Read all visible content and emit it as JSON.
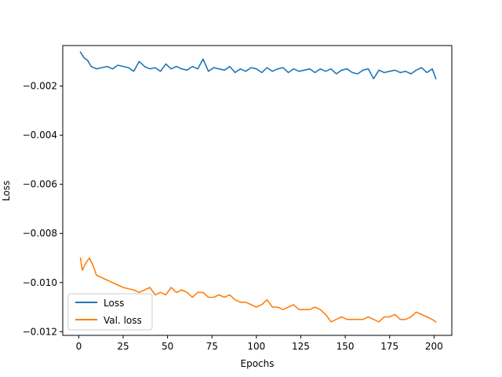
{
  "chart_data": {
    "type": "line",
    "title": "",
    "xlabel": "Epochs",
    "ylabel": "Loss",
    "xlim": [
      -9,
      210
    ],
    "ylim": [
      -0.01215,
      -0.00035
    ],
    "xticks": [
      0,
      25,
      50,
      75,
      100,
      125,
      150,
      175,
      200
    ],
    "xtick_labels": [
      "0",
      "25",
      "50",
      "75",
      "100",
      "125",
      "150",
      "175",
      "200"
    ],
    "yticks": [
      -0.002,
      -0.004,
      -0.006,
      -0.008,
      -0.01,
      -0.012
    ],
    "ytick_labels": [
      "−0.002",
      "−0.004",
      "−0.006",
      "−0.008",
      "−0.010",
      "−0.012"
    ],
    "grid": false,
    "legend_position": "lower-left",
    "series": [
      {
        "name": "Loss",
        "color": "#1f77b4",
        "x": [
          1,
          3,
          5,
          7,
          10,
          13,
          16,
          19,
          22,
          25,
          28,
          31,
          34,
          37,
          40,
          43,
          46,
          49,
          52,
          55,
          58,
          61,
          64,
          67,
          70,
          73,
          76,
          79,
          82,
          85,
          88,
          91,
          94,
          97,
          100,
          103,
          106,
          109,
          112,
          115,
          118,
          121,
          124,
          127,
          130,
          133,
          136,
          139,
          142,
          145,
          148,
          151,
          154,
          157,
          160,
          163,
          166,
          169,
          172,
          175,
          178,
          181,
          184,
          187,
          190,
          193,
          196,
          199,
          201
        ],
        "values": [
          -0.00062,
          -0.00085,
          -0.00095,
          -0.0012,
          -0.0013,
          -0.00125,
          -0.0012,
          -0.0013,
          -0.00115,
          -0.0012,
          -0.00125,
          -0.0014,
          -0.001,
          -0.0012,
          -0.0013,
          -0.00125,
          -0.0014,
          -0.0011,
          -0.0013,
          -0.0012,
          -0.0013,
          -0.00135,
          -0.0012,
          -0.0013,
          -0.0009,
          -0.0014,
          -0.00125,
          -0.0013,
          -0.00135,
          -0.0012,
          -0.00145,
          -0.0013,
          -0.0014,
          -0.00125,
          -0.0013,
          -0.00145,
          -0.00125,
          -0.0014,
          -0.0013,
          -0.00125,
          -0.00145,
          -0.0013,
          -0.0014,
          -0.00135,
          -0.0013,
          -0.00145,
          -0.0013,
          -0.0014,
          -0.0013,
          -0.0015,
          -0.00135,
          -0.0013,
          -0.00145,
          -0.0015,
          -0.00135,
          -0.0013,
          -0.0017,
          -0.00135,
          -0.00145,
          -0.0014,
          -0.00135,
          -0.00145,
          -0.0014,
          -0.0015,
          -0.00135,
          -0.00125,
          -0.00145,
          -0.0013,
          -0.0017
        ]
      },
      {
        "name": "Val. loss",
        "color": "#ff7f0e",
        "x": [
          1,
          2,
          4,
          6,
          8,
          10,
          13,
          16,
          19,
          22,
          25,
          28,
          31,
          34,
          37,
          40,
          43,
          46,
          49,
          52,
          55,
          58,
          61,
          64,
          67,
          70,
          73,
          76,
          79,
          82,
          85,
          88,
          91,
          94,
          97,
          100,
          103,
          106,
          109,
          112,
          115,
          118,
          121,
          124,
          127,
          130,
          133,
          136,
          139,
          142,
          145,
          148,
          151,
          154,
          157,
          160,
          163,
          166,
          169,
          172,
          175,
          178,
          181,
          184,
          187,
          190,
          193,
          196,
          199,
          201
        ],
        "values": [
          -0.009,
          -0.0095,
          -0.0092,
          -0.009,
          -0.0093,
          -0.0097,
          -0.0098,
          -0.0099,
          -0.01,
          -0.0101,
          -0.0102,
          -0.01025,
          -0.0103,
          -0.0104,
          -0.0103,
          -0.0102,
          -0.0105,
          -0.0104,
          -0.0105,
          -0.0102,
          -0.0104,
          -0.0103,
          -0.0104,
          -0.0106,
          -0.0104,
          -0.0104,
          -0.0106,
          -0.0106,
          -0.0105,
          -0.0106,
          -0.0105,
          -0.0107,
          -0.0108,
          -0.0108,
          -0.0109,
          -0.011,
          -0.0109,
          -0.0107,
          -0.011,
          -0.011,
          -0.0111,
          -0.011,
          -0.0109,
          -0.0111,
          -0.0111,
          -0.0111,
          -0.011,
          -0.0111,
          -0.0113,
          -0.0116,
          -0.0115,
          -0.0114,
          -0.0115,
          -0.0115,
          -0.0115,
          -0.0115,
          -0.0114,
          -0.0115,
          -0.0116,
          -0.0114,
          -0.0114,
          -0.0113,
          -0.0115,
          -0.0115,
          -0.0114,
          -0.0112,
          -0.0113,
          -0.0114,
          -0.0115,
          -0.0116
        ]
      }
    ]
  }
}
